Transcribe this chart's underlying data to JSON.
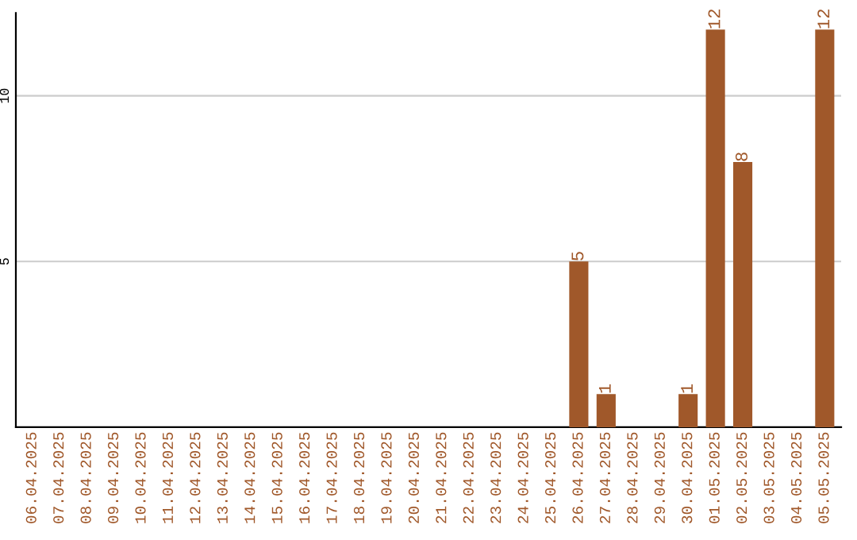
{
  "chart_data": {
    "type": "bar",
    "categories": [
      "06.04.2025",
      "07.04.2025",
      "08.04.2025",
      "09.04.2025",
      "10.04.2025",
      "11.04.2025",
      "12.04.2025",
      "13.04.2025",
      "14.04.2025",
      "15.04.2025",
      "16.04.2025",
      "17.04.2025",
      "18.04.2025",
      "19.04.2025",
      "20.04.2025",
      "21.04.2025",
      "22.04.2025",
      "23.04.2025",
      "24.04.2025",
      "25.04.2025",
      "26.04.2025",
      "27.04.2025",
      "28.04.2025",
      "29.04.2025",
      "30.04.2025",
      "01.05.2025",
      "02.05.2025",
      "03.05.2025",
      "04.05.2025",
      "05.05.2025"
    ],
    "values": [
      0,
      0,
      0,
      0,
      0,
      0,
      0,
      0,
      0,
      0,
      0,
      0,
      0,
      0,
      0,
      0,
      0,
      0,
      0,
      0,
      5,
      1,
      0,
      0,
      1,
      12,
      8,
      0,
      0,
      12
    ],
    "value_labels": [
      null,
      null,
      null,
      null,
      null,
      null,
      null,
      null,
      null,
      null,
      null,
      null,
      null,
      null,
      null,
      null,
      null,
      null,
      null,
      null,
      "5",
      "1",
      null,
      null,
      "1",
      "12",
      "8",
      null,
      null,
      "12"
    ],
    "color": "#a0582a",
    "ylim": [
      0,
      12.5
    ],
    "yticks": [
      5,
      10
    ],
    "grid": "y"
  }
}
